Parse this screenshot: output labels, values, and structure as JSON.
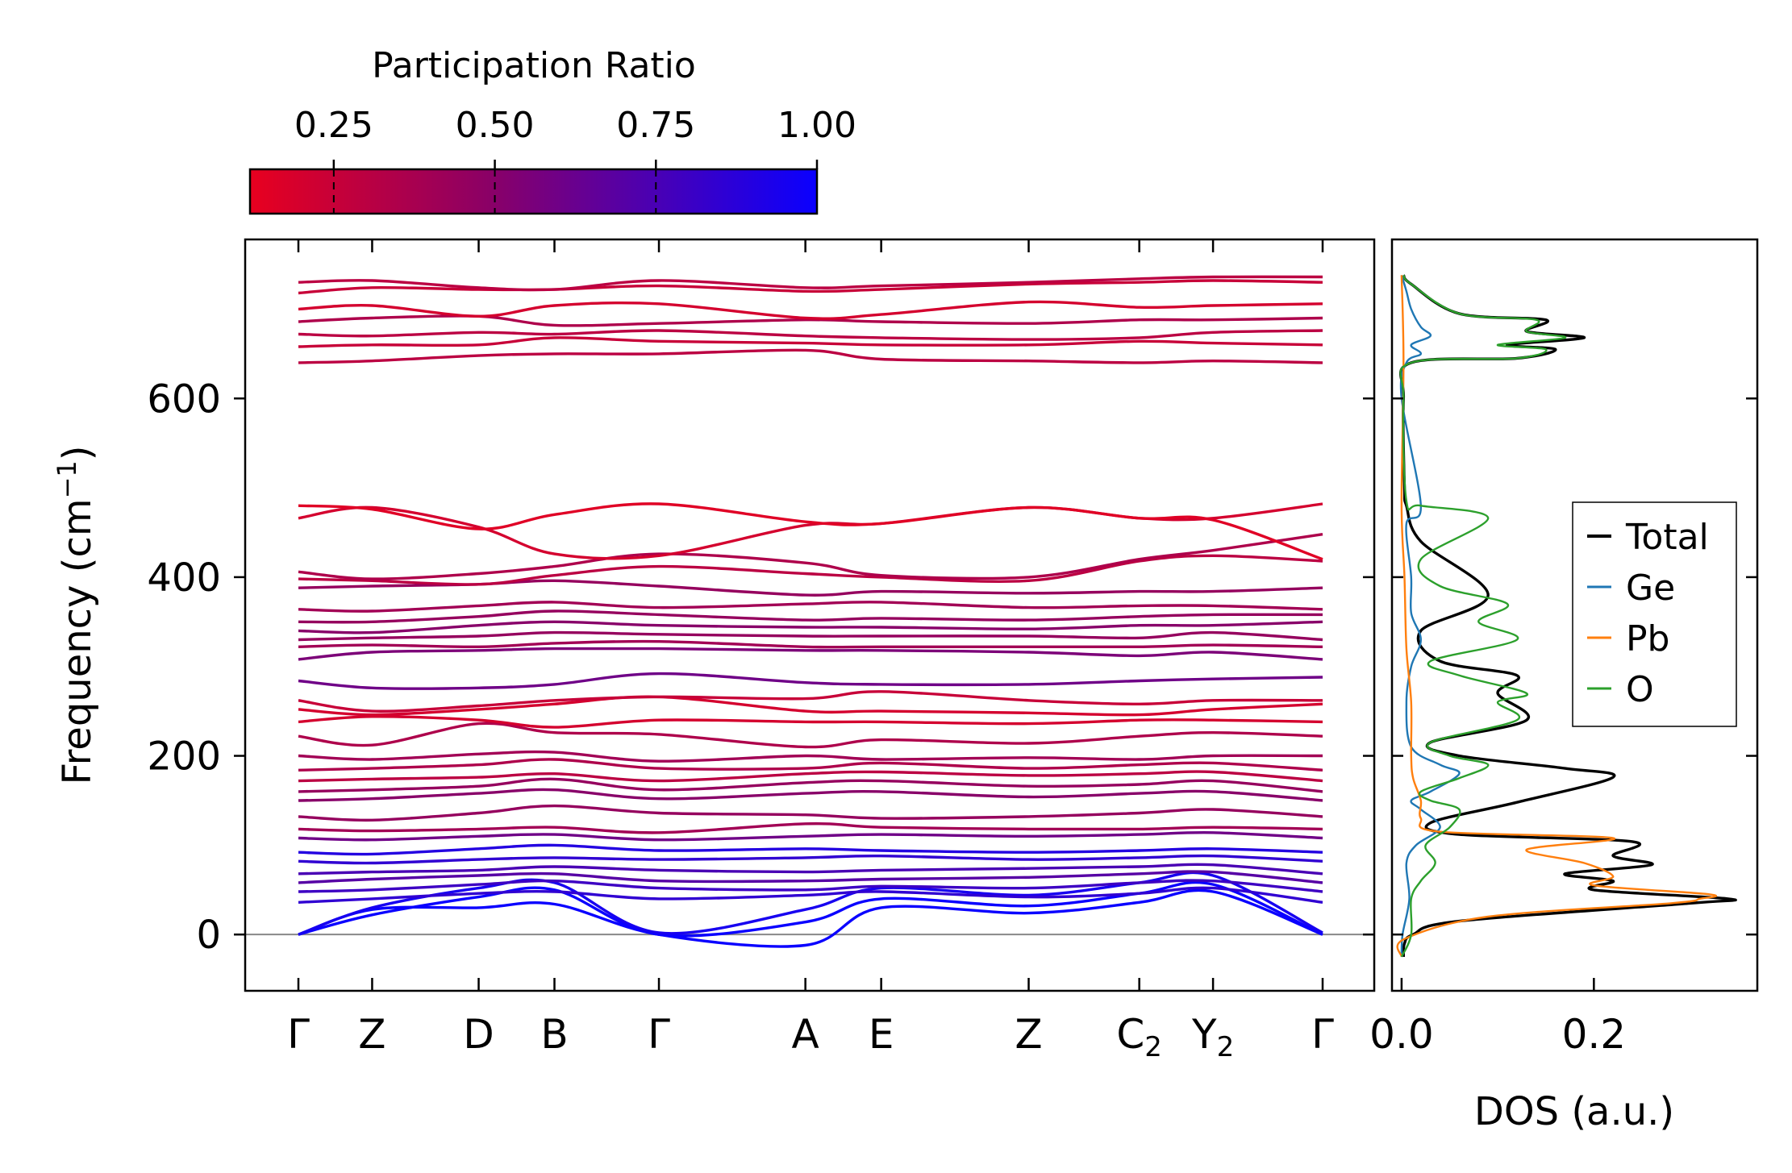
{
  "chart_data": [
    {
      "type": "line",
      "title": "",
      "xlabel": "",
      "ylabel": "Frequency (cm",
      "ylabel_superscript": "−1",
      "ylabel_suffix": ")",
      "ylim": [
        -63,
        778
      ],
      "yticks": [
        0,
        200,
        400,
        600
      ],
      "ytick_labels": [
        "0",
        "200",
        "400",
        "600"
      ],
      "x_range": [
        0,
        1
      ],
      "xtick_positions": [
        0.0,
        0.072,
        0.176,
        0.25,
        0.352,
        0.495,
        0.569,
        0.713,
        0.821,
        0.893,
        1.0
      ],
      "xtick_labels": [
        {
          "main": "Γ",
          "sub": ""
        },
        {
          "main": "Z",
          "sub": ""
        },
        {
          "main": "D",
          "sub": ""
        },
        {
          "main": "B",
          "sub": ""
        },
        {
          "main": "Γ",
          "sub": ""
        },
        {
          "main": "A",
          "sub": ""
        },
        {
          "main": "E",
          "sub": ""
        },
        {
          "main": "Z",
          "sub": ""
        },
        {
          "main": "C",
          "sub": "2"
        },
        {
          "main": "Y",
          "sub": "2"
        },
        {
          "main": "Γ",
          "sub": ""
        }
      ],
      "zero_line": 0,
      "colorbar": {
        "label": "Participation Ratio",
        "range": [
          0.12,
          1.0
        ],
        "ticks": [
          0.25,
          0.5,
          0.75,
          1.0
        ],
        "tick_labels": [
          "0.25",
          "0.50",
          "0.75",
          "1.00"
        ],
        "color_low": "#e8001f",
        "color_mid": "#8b0066",
        "color_high": "#0a00ff"
      },
      "series": [
        {
          "name": "acoustic-1",
          "values": [
            0,
            28,
            30,
            34,
            0,
            -12,
            30,
            24,
            36,
            48,
            0
          ],
          "pr": 1.0
        },
        {
          "name": "acoustic-2",
          "values": [
            0,
            22,
            42,
            50,
            0,
            14,
            40,
            32,
            46,
            56,
            0
          ],
          "pr": 1.0
        },
        {
          "name": "acoustic-3",
          "values": [
            0,
            30,
            52,
            58,
            2,
            28,
            52,
            44,
            58,
            66,
            2
          ],
          "pr": 0.95
        },
        {
          "name": "band-36",
          "values": [
            36,
            40,
            46,
            48,
            40,
            44,
            48,
            42,
            46,
            52,
            36
          ],
          "pr": 0.85
        },
        {
          "name": "band-48",
          "values": [
            48,
            50,
            56,
            60,
            52,
            50,
            54,
            52,
            58,
            60,
            48
          ],
          "pr": 0.8
        },
        {
          "name": "band-58",
          "values": [
            58,
            62,
            66,
            68,
            60,
            60,
            62,
            64,
            68,
            70,
            58
          ],
          "pr": 0.7
        },
        {
          "name": "band-68",
          "values": [
            68,
            70,
            72,
            76,
            72,
            70,
            72,
            74,
            76,
            78,
            68
          ],
          "pr": 0.75
        },
        {
          "name": "band-82",
          "values": [
            82,
            80,
            84,
            86,
            84,
            86,
            88,
            84,
            86,
            88,
            82
          ],
          "pr": 0.85
        },
        {
          "name": "band-92",
          "values": [
            92,
            90,
            96,
            100,
            94,
            96,
            94,
            92,
            94,
            96,
            92
          ],
          "pr": 0.9
        },
        {
          "name": "band-108",
          "values": [
            108,
            106,
            110,
            112,
            106,
            110,
            112,
            110,
            112,
            114,
            108
          ],
          "pr": 0.6
        },
        {
          "name": "band-118",
          "values": [
            118,
            116,
            118,
            120,
            114,
            124,
            120,
            118,
            118,
            120,
            118
          ],
          "pr": 0.4
        },
        {
          "name": "band-132",
          "values": [
            132,
            128,
            136,
            144,
            136,
            134,
            130,
            132,
            136,
            140,
            132
          ],
          "pr": 0.45
        },
        {
          "name": "band-150",
          "values": [
            150,
            152,
            158,
            162,
            152,
            158,
            160,
            154,
            158,
            160,
            150
          ],
          "pr": 0.5
        },
        {
          "name": "band-160",
          "values": [
            160,
            162,
            166,
            174,
            162,
            170,
            172,
            166,
            168,
            172,
            160
          ],
          "pr": 0.45
        },
        {
          "name": "band-172",
          "values": [
            172,
            174,
            176,
            180,
            172,
            180,
            182,
            178,
            180,
            182,
            172
          ],
          "pr": 0.3
        },
        {
          "name": "band-184",
          "values": [
            184,
            186,
            190,
            196,
            186,
            186,
            192,
            186,
            190,
            192,
            184
          ],
          "pr": 0.35
        },
        {
          "name": "band-200",
          "values": [
            200,
            196,
            202,
            204,
            194,
            200,
            196,
            198,
            196,
            200,
            200
          ],
          "pr": 0.4
        },
        {
          "name": "band-222",
          "values": [
            222,
            212,
            236,
            226,
            224,
            210,
            218,
            214,
            222,
            226,
            222
          ],
          "pr": 0.35
        },
        {
          "name": "band-238",
          "values": [
            238,
            244,
            240,
            232,
            240,
            238,
            238,
            236,
            240,
            240,
            238
          ],
          "pr": 0.2
        },
        {
          "name": "band-252",
          "values": [
            252,
            246,
            252,
            258,
            266,
            250,
            250,
            248,
            246,
            252,
            258
          ],
          "pr": 0.2
        },
        {
          "name": "band-262",
          "values": [
            262,
            250,
            256,
            262,
            266,
            264,
            272,
            262,
            258,
            262,
            262
          ],
          "pr": 0.25
        },
        {
          "name": "band-284",
          "values": [
            284,
            276,
            276,
            280,
            292,
            282,
            280,
            280,
            284,
            286,
            288
          ],
          "pr": 0.6
        },
        {
          "name": "band-308",
          "values": [
            308,
            316,
            318,
            320,
            320,
            318,
            318,
            316,
            312,
            316,
            308
          ],
          "pr": 0.55
        },
        {
          "name": "band-322",
          "values": [
            322,
            324,
            322,
            326,
            328,
            322,
            322,
            322,
            322,
            324,
            322
          ],
          "pr": 0.4
        },
        {
          "name": "band-330",
          "values": [
            330,
            332,
            334,
            338,
            336,
            334,
            334,
            334,
            332,
            338,
            330
          ],
          "pr": 0.45
        },
        {
          "name": "band-340",
          "values": [
            340,
            338,
            346,
            350,
            346,
            344,
            344,
            342,
            346,
            346,
            350
          ],
          "pr": 0.5
        },
        {
          "name": "band-350",
          "values": [
            350,
            350,
            356,
            362,
            358,
            352,
            354,
            352,
            356,
            358,
            358
          ],
          "pr": 0.45
        },
        {
          "name": "band-364",
          "values": [
            364,
            362,
            368,
            372,
            366,
            370,
            372,
            366,
            368,
            368,
            364
          ],
          "pr": 0.4
        },
        {
          "name": "band-388",
          "values": [
            388,
            390,
            392,
            396,
            390,
            380,
            384,
            382,
            384,
            384,
            388
          ],
          "pr": 0.45
        },
        {
          "name": "band-398",
          "values": [
            398,
            396,
            392,
            402,
            412,
            404,
            400,
            396,
            418,
            424,
            418
          ],
          "pr": 0.3
        },
        {
          "name": "band-406",
          "values": [
            406,
            398,
            404,
            412,
            426,
            416,
            402,
            400,
            420,
            430,
            448
          ],
          "pr": 0.35
        },
        {
          "name": "band-466",
          "values": [
            466,
            478,
            456,
            426,
            424,
            458,
            460,
            478,
            466,
            466,
            482
          ],
          "pr": 0.2
        },
        {
          "name": "band-480",
          "values": [
            480,
            476,
            454,
            470,
            482,
            462,
            460,
            478,
            466,
            464,
            420
          ],
          "pr": 0.15
        },
        {
          "name": "band-640",
          "values": [
            640,
            642,
            648,
            650,
            650,
            654,
            644,
            642,
            640,
            642,
            640
          ],
          "pr": 0.3
        },
        {
          "name": "band-658",
          "values": [
            658,
            660,
            660,
            668,
            664,
            662,
            660,
            660,
            664,
            662,
            660
          ],
          "pr": 0.25
        },
        {
          "name": "band-672",
          "values": [
            672,
            670,
            674,
            672,
            676,
            670,
            668,
            666,
            668,
            674,
            676
          ],
          "pr": 0.3
        },
        {
          "name": "band-686",
          "values": [
            686,
            690,
            692,
            682,
            684,
            688,
            686,
            684,
            688,
            688,
            690
          ],
          "pr": 0.35
        },
        {
          "name": "band-700",
          "values": [
            700,
            704,
            692,
            704,
            706,
            690,
            694,
            708,
            702,
            704,
            706
          ],
          "pr": 0.2
        },
        {
          "name": "band-718",
          "values": [
            718,
            724,
            722,
            722,
            726,
            720,
            722,
            728,
            730,
            732,
            730
          ],
          "pr": 0.25
        },
        {
          "name": "band-730",
          "values": [
            730,
            732,
            724,
            722,
            732,
            724,
            726,
            730,
            734,
            736,
            736
          ],
          "pr": 0.3
        }
      ]
    },
    {
      "type": "line",
      "title": "",
      "xlabel": "DOS (a.u.)",
      "ylabel": "",
      "xlim": [
        -0.01,
        0.37
      ],
      "ylim": [
        -63,
        778
      ],
      "xticks": [
        0.0,
        0.2
      ],
      "xtick_labels": [
        "0.0",
        "0.2"
      ],
      "legend_position": "right",
      "legend": [
        "Total",
        "Ge",
        "Pb",
        "O"
      ],
      "colors": {
        "Total": "#000000",
        "Ge": "#1f77b4",
        "Pb": "#ff7f0e",
        "O": "#2ca02c"
      },
      "series": [
        {
          "name": "Total",
          "x": [
            0.002,
            0.003,
            0.012,
            0.06,
            0.3,
            0.34,
            0.2,
            0.22,
            0.17,
            0.26,
            0.22,
            0.24,
            0.06,
            0.03,
            0.12,
            0.22,
            0.17,
            0.06,
            0.03,
            0.13,
            0.1,
            0.12,
            0.04,
            0.02,
            0.09,
            0.02,
            0.005,
            0.003,
            0.002,
            0.01,
            0.12,
            0.16,
            0.11,
            0.19,
            0.13,
            0.15,
            0.06,
            0.01,
            0.002
          ],
          "y": [
            -25,
            -10,
            0,
            15,
            35,
            40,
            50,
            60,
            68,
            78,
            88,
            104,
            112,
            125,
            148,
            176,
            186,
            200,
            215,
            240,
            270,
            290,
            306,
            340,
            380,
            440,
            480,
            500,
            600,
            640,
            645,
            655,
            660,
            668,
            675,
            688,
            695,
            728,
            738
          ]
        },
        {
          "name": "Ge",
          "x": [
            0.0,
            0.001,
            0.008,
            0.005,
            0.015,
            0.04,
            0.02,
            0.01,
            0.03,
            0.06,
            0.04,
            0.01,
            0.005,
            0.01,
            0.02,
            0.01,
            0.01,
            0.005,
            0.02,
            0.0,
            0.005,
            0.02,
            0.01,
            0.03,
            0.02,
            0.01,
            0.005,
            0.0
          ],
          "y": [
            -25,
            0,
            40,
            80,
            100,
            120,
            140,
            150,
            160,
            180,
            190,
            210,
            260,
            300,
            330,
            360,
            400,
            460,
            480,
            600,
            640,
            650,
            660,
            670,
            680,
            700,
            720,
            738
          ]
        },
        {
          "name": "Pb",
          "x": [
            0.0,
            0.003,
            0.09,
            0.28,
            0.31,
            0.32,
            0.2,
            0.22,
            0.19,
            0.13,
            0.22,
            0.04,
            0.02,
            0.02,
            0.012,
            0.01,
            0.01,
            0.005,
            0.003,
            0.0,
            0.002,
            0.0
          ],
          "y": [
            -25,
            -5,
            20,
            35,
            40,
            45,
            55,
            65,
            80,
            95,
            108,
            115,
            130,
            150,
            175,
            200,
            260,
            320,
            400,
            480,
            640,
            738
          ]
        },
        {
          "name": "O",
          "x": [
            0.0,
            0.01,
            0.01,
            0.02,
            0.035,
            0.025,
            0.05,
            0.06,
            0.03,
            0.02,
            0.06,
            0.09,
            0.05,
            0.03,
            0.12,
            0.1,
            0.13,
            0.06,
            0.03,
            0.12,
            0.08,
            0.11,
            0.04,
            0.02,
            0.09,
            0.02,
            0.005,
            0.002,
            0.01,
            0.12,
            0.15,
            0.1,
            0.17,
            0.13,
            0.14,
            0.06,
            0.01,
            0.002
          ],
          "y": [
            -25,
            0,
            40,
            60,
            80,
            100,
            120,
            140,
            150,
            160,
            175,
            190,
            200,
            215,
            240,
            260,
            270,
            290,
            306,
            330,
            350,
            370,
            390,
            420,
            466,
            480,
            485,
            600,
            640,
            645,
            655,
            660,
            668,
            675,
            688,
            695,
            728,
            738
          ]
        }
      ]
    }
  ]
}
